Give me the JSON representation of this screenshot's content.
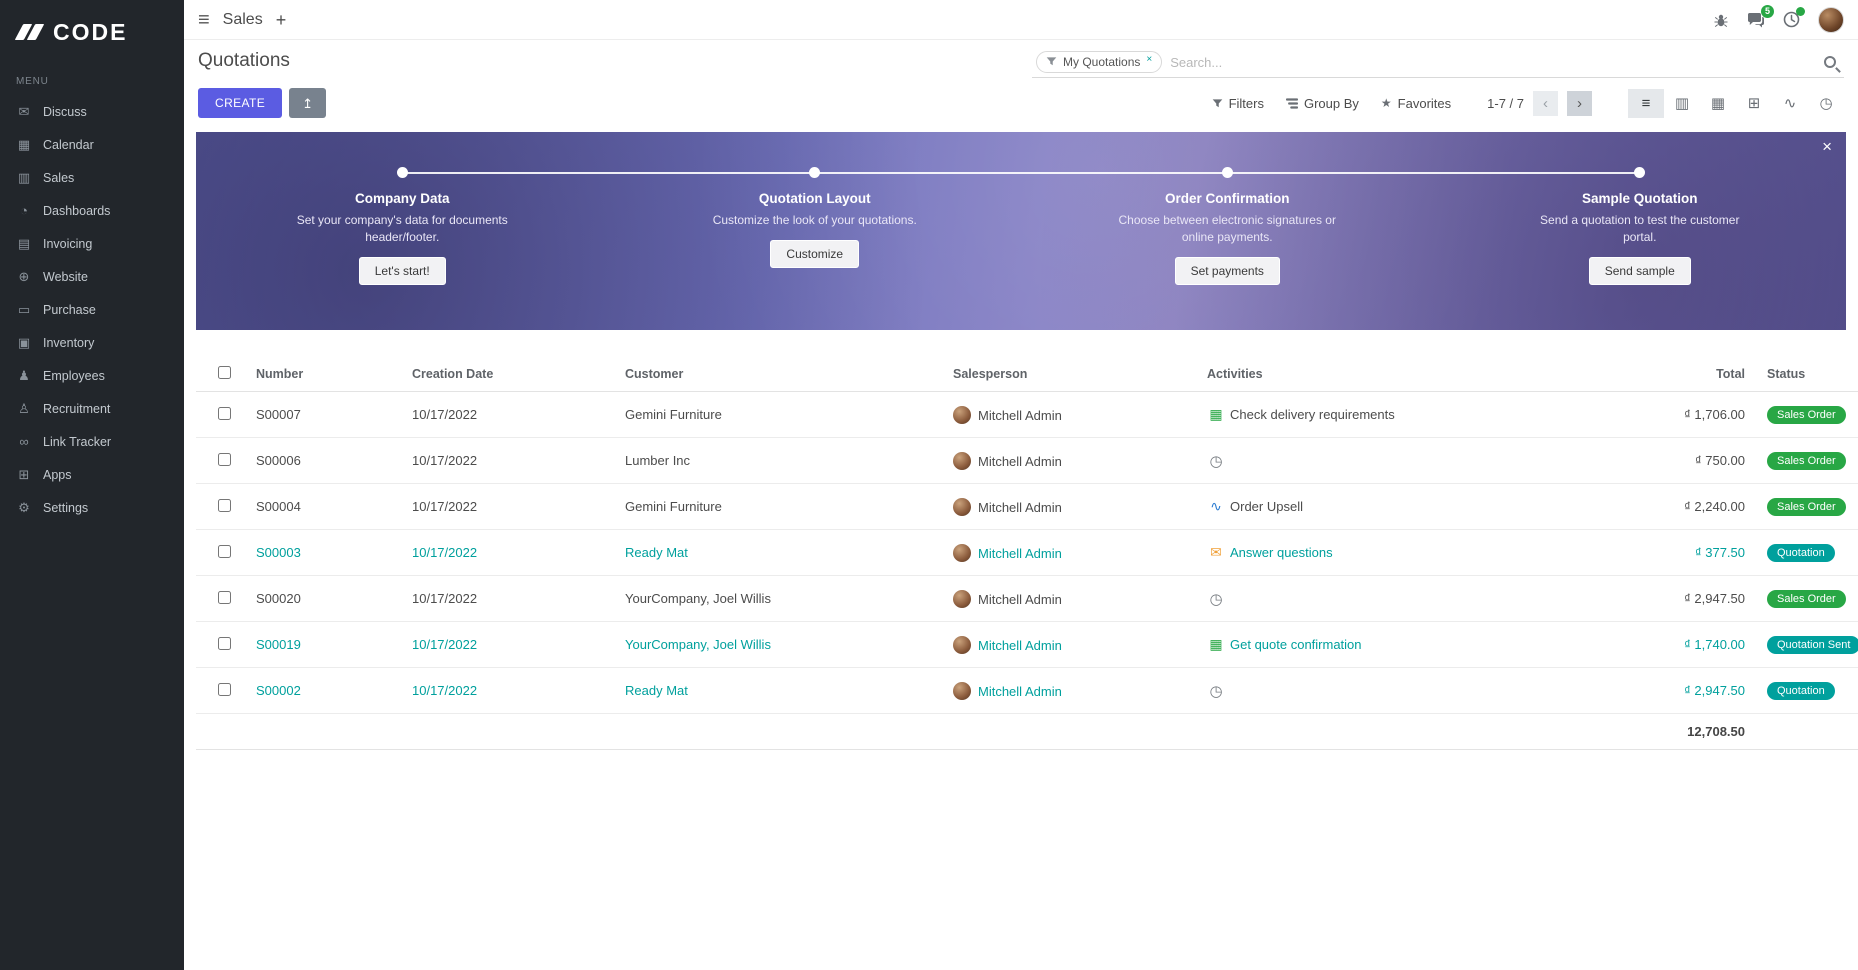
{
  "sidebar": {
    "logo": "CODE",
    "menu_label": "MENU",
    "items": [
      {
        "label": "Discuss",
        "icon": "discuss-icon",
        "glyph": "✉"
      },
      {
        "label": "Calendar",
        "icon": "calendar-icon",
        "glyph": "▦"
      },
      {
        "label": "Sales",
        "icon": "sales-icon",
        "glyph": "▥"
      },
      {
        "label": "Dashboards",
        "icon": "dashboards-icon",
        "glyph": "◔"
      },
      {
        "label": "Invoicing",
        "icon": "invoicing-icon",
        "glyph": "▤"
      },
      {
        "label": "Website",
        "icon": "website-icon",
        "glyph": "⊕"
      },
      {
        "label": "Purchase",
        "icon": "purchase-icon",
        "glyph": "▭"
      },
      {
        "label": "Inventory",
        "icon": "inventory-icon",
        "glyph": "▣"
      },
      {
        "label": "Employees",
        "icon": "employees-icon",
        "glyph": "♟"
      },
      {
        "label": "Recruitment",
        "icon": "recruitment-icon",
        "glyph": "♙"
      },
      {
        "label": "Link Tracker",
        "icon": "link-tracker-icon",
        "glyph": "∞"
      },
      {
        "label": "Apps",
        "icon": "apps-icon",
        "glyph": "⊞"
      },
      {
        "label": "Settings",
        "icon": "settings-icon",
        "glyph": "⚙"
      }
    ]
  },
  "topbar": {
    "title": "Sales",
    "chat_badge": "5"
  },
  "icons": {
    "hamburger": "≡",
    "plus": "+",
    "close": "×",
    "facet_remove": "×",
    "star": "★",
    "upload": "↥",
    "pager_prev": "‹",
    "pager_next": "›",
    "list_view": "≡",
    "kanban_view": "▥",
    "calendar_view": "▦",
    "pivot_view": "⊞",
    "graph_view": "∿",
    "activity_view": "◷"
  },
  "control": {
    "page_title": "Quotations",
    "search_facet": "My Quotations",
    "search_placeholder": "Search...",
    "create_label": "CREATE",
    "filters_label": "Filters",
    "group_by_label": "Group By",
    "favorites_label": "Favorites",
    "pager": "1-7 / 7"
  },
  "banner": {
    "steps": [
      {
        "title": "Company Data",
        "desc": "Set your company's data for documents header/footer.",
        "button": "Let's start!"
      },
      {
        "title": "Quotation Layout",
        "desc": "Customize the look of your quotations.",
        "button": "Customize"
      },
      {
        "title": "Order Confirmation",
        "desc": "Choose between electronic signatures or online payments.",
        "button": "Set payments"
      },
      {
        "title": "Sample Quotation",
        "desc": "Send a quotation to test the customer portal.",
        "button": "Send sample"
      }
    ]
  },
  "table": {
    "columns": [
      "Number",
      "Creation Date",
      "Customer",
      "Salesperson",
      "Activities",
      "Total",
      "Status"
    ],
    "activity_icons": {
      "spreadsheet": "▦",
      "clock": "◷",
      "chart": "∿",
      "envelope": "✉"
    },
    "rows": [
      {
        "number": "S00007",
        "date": "10/17/2022",
        "customer": "Gemini Furniture",
        "salesperson": "Mitchell Admin",
        "activity": {
          "type": "spreadsheet",
          "label": "Check delivery requirements"
        },
        "total": "₫ 1,706.00",
        "status": "Sales Order",
        "highlight": false
      },
      {
        "number": "S00006",
        "date": "10/17/2022",
        "customer": "Lumber Inc",
        "salesperson": "Mitchell Admin",
        "activity": {
          "type": "clock",
          "label": ""
        },
        "total": "₫ 750.00",
        "status": "Sales Order",
        "highlight": false
      },
      {
        "number": "S00004",
        "date": "10/17/2022",
        "customer": "Gemini Furniture",
        "salesperson": "Mitchell Admin",
        "activity": {
          "type": "chart",
          "label": "Order Upsell"
        },
        "total": "₫ 2,240.00",
        "status": "Sales Order",
        "highlight": false
      },
      {
        "number": "S00003",
        "date": "10/17/2022",
        "customer": "Ready Mat",
        "salesperson": "Mitchell Admin",
        "activity": {
          "type": "envelope",
          "label": "Answer questions"
        },
        "total": "₫ 377.50",
        "status": "Quotation",
        "highlight": true
      },
      {
        "number": "S00020",
        "date": "10/17/2022",
        "customer": "YourCompany, Joel Willis",
        "salesperson": "Mitchell Admin",
        "activity": {
          "type": "clock",
          "label": ""
        },
        "total": "₫ 2,947.50",
        "status": "Sales Order",
        "highlight": false
      },
      {
        "number": "S00019",
        "date": "10/17/2022",
        "customer": "YourCompany, Joel Willis",
        "salesperson": "Mitchell Admin",
        "activity": {
          "type": "spreadsheet",
          "label": "Get quote confirmation"
        },
        "total": "₫ 1,740.00",
        "status": "Quotation Sent",
        "highlight": true
      },
      {
        "number": "S00002",
        "date": "10/17/2022",
        "customer": "Ready Mat",
        "salesperson": "Mitchell Admin",
        "activity": {
          "type": "clock",
          "label": ""
        },
        "total": "₫ 2,947.50",
        "status": "Quotation",
        "highlight": true
      }
    ],
    "sum": "12,708.50"
  }
}
